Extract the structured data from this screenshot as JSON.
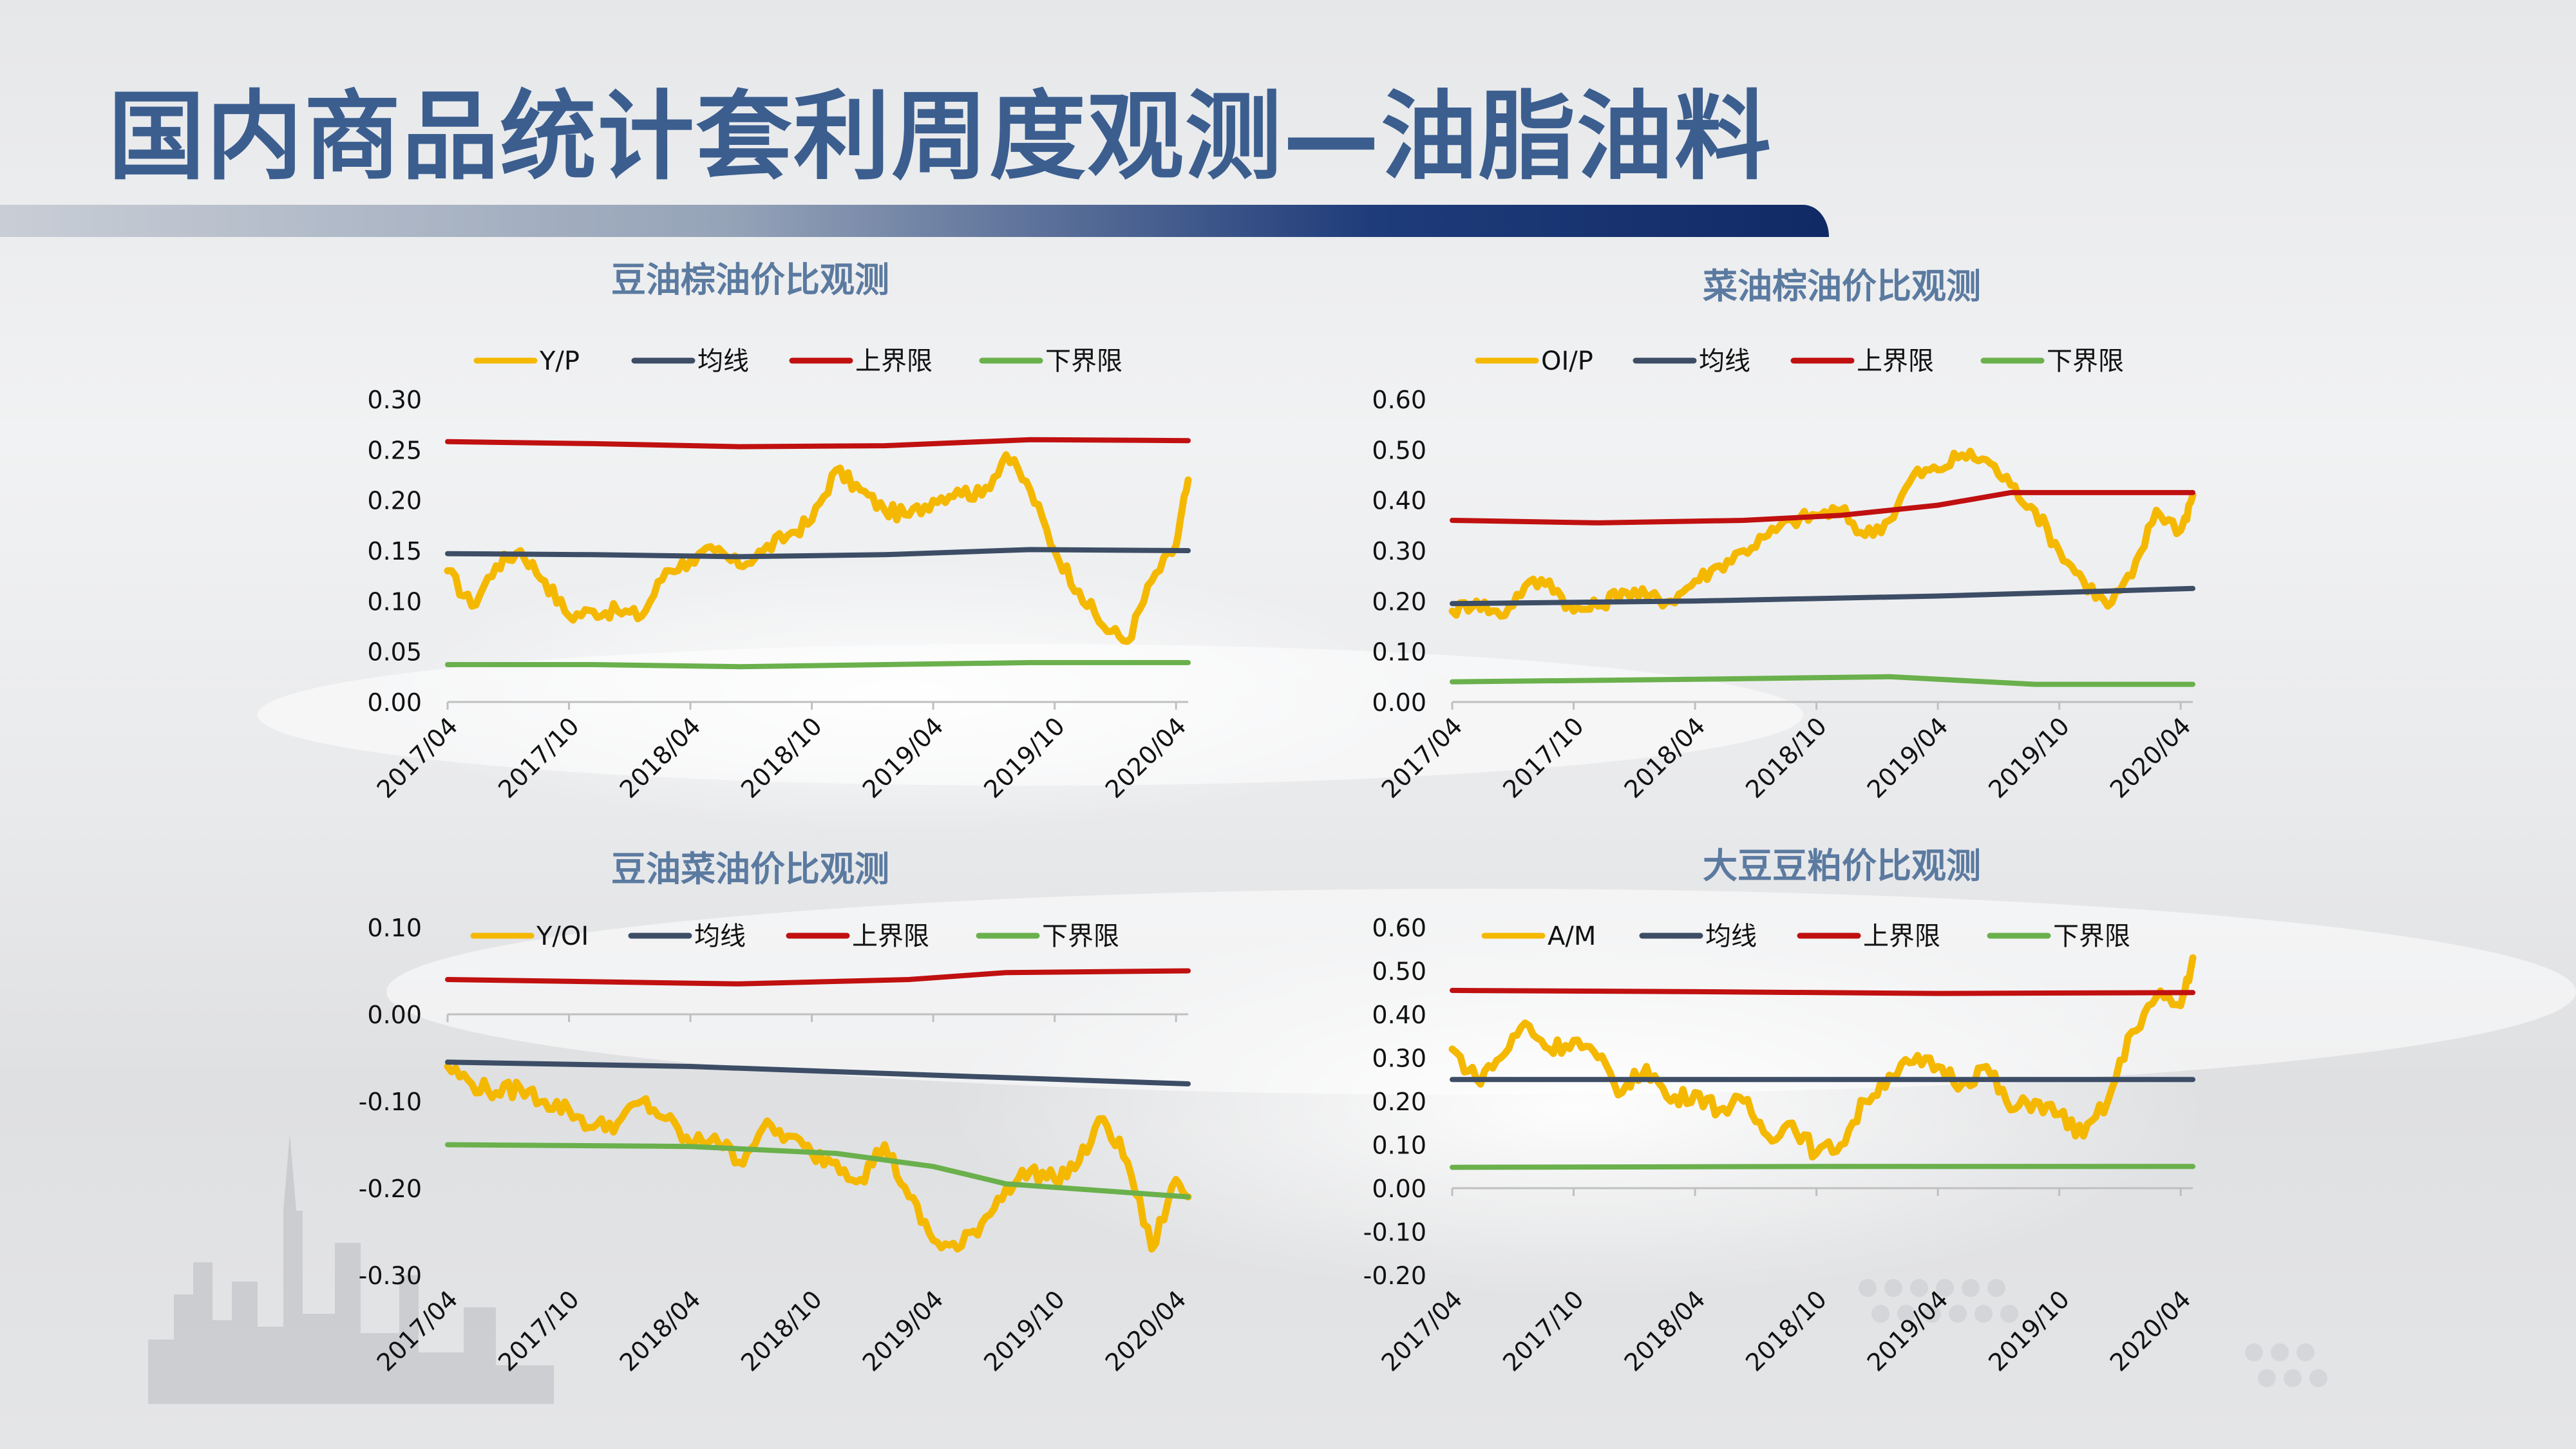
{
  "slide": {
    "title": "国内商品统计套利周度观测—油脂油料"
  },
  "colors": {
    "ratio": "#f5b800",
    "mean": "#3d4d66",
    "upper": "#c01010",
    "lower": "#6ab04c",
    "title": "#3b5e8f",
    "chart_title": "#5b7aa0"
  },
  "chart_data": [
    {
      "type": "line",
      "title": "豆油棕油价比观测",
      "x_tick_labels": [
        "2017/04",
        "2017/10",
        "2018/04",
        "2018/10",
        "2019/04",
        "2019/10",
        "2020/04"
      ],
      "ylim": [
        0,
        0.3
      ],
      "y_ticks": [
        0.0,
        0.05,
        0.1,
        0.15,
        0.2,
        0.25,
        0.3
      ],
      "y_tick_labels": [
        "0.00",
        "0.05",
        "0.10",
        "0.15",
        "0.20",
        "0.25",
        "0.30"
      ],
      "legend_position": "top",
      "series": [
        {
          "name": "Y/P",
          "role": "ratio",
          "points": [
            [
              0,
              0.13
            ],
            [
              1,
              0.095
            ],
            [
              2,
              0.135
            ],
            [
              3,
              0.15
            ],
            [
              4,
              0.12
            ],
            [
              5,
              0.085
            ],
            [
              6,
              0.09
            ],
            [
              7,
              0.09
            ],
            [
              8,
              0.085
            ],
            [
              9,
              0.13
            ],
            [
              10,
              0.14
            ],
            [
              11,
              0.15
            ],
            [
              12,
              0.135
            ],
            [
              13,
              0.15
            ],
            [
              14,
              0.165
            ],
            [
              15,
              0.18
            ],
            [
              16,
              0.23
            ],
            [
              17,
              0.21
            ],
            [
              18,
              0.19
            ],
            [
              19,
              0.185
            ],
            [
              20,
              0.2
            ],
            [
              21,
              0.21
            ],
            [
              22,
              0.205
            ],
            [
              23,
              0.245
            ],
            [
              24,
              0.21
            ],
            [
              25,
              0.15
            ],
            [
              26,
              0.11
            ],
            [
              27,
              0.075
            ],
            [
              28,
              0.06
            ],
            [
              29,
              0.12
            ],
            [
              30,
              0.155
            ],
            [
              30.5,
              0.22
            ]
          ]
        },
        {
          "name": "均线",
          "role": "mean",
          "points": [
            [
              0,
              0.147
            ],
            [
              6,
              0.146
            ],
            [
              12,
              0.144
            ],
            [
              18,
              0.146
            ],
            [
              24,
              0.151
            ],
            [
              30.5,
              0.15
            ]
          ]
        },
        {
          "name": "上界限",
          "role": "upper",
          "points": [
            [
              0,
              0.258
            ],
            [
              6,
              0.256
            ],
            [
              12,
              0.253
            ],
            [
              18,
              0.254
            ],
            [
              24,
              0.26
            ],
            [
              30.5,
              0.259
            ]
          ]
        },
        {
          "name": "下界限",
          "role": "lower",
          "points": [
            [
              0,
              0.037
            ],
            [
              6,
              0.037
            ],
            [
              12,
              0.035
            ],
            [
              18,
              0.037
            ],
            [
              24,
              0.039
            ],
            [
              30.5,
              0.039
            ]
          ]
        }
      ]
    },
    {
      "type": "line",
      "title": "菜油棕油价比观测",
      "x_tick_labels": [
        "2017/04",
        "2017/10",
        "2018/04",
        "2018/10",
        "2019/04",
        "2019/10",
        "2020/04"
      ],
      "ylim": [
        0,
        0.6
      ],
      "y_ticks": [
        0.0,
        0.1,
        0.2,
        0.3,
        0.4,
        0.5,
        0.6
      ],
      "y_tick_labels": [
        "0.00",
        "0.10",
        "0.20",
        "0.30",
        "0.40",
        "0.50",
        "0.60"
      ],
      "legend_position": "top",
      "series": [
        {
          "name": "OI/P",
          "role": "ratio",
          "points": [
            [
              0,
              0.18
            ],
            [
              1,
              0.2
            ],
            [
              2,
              0.17
            ],
            [
              3,
              0.23
            ],
            [
              4,
              0.24
            ],
            [
              5,
              0.18
            ],
            [
              6,
              0.19
            ],
            [
              7,
              0.22
            ],
            [
              8,
              0.21
            ],
            [
              9,
              0.2
            ],
            [
              10,
              0.24
            ],
            [
              11,
              0.27
            ],
            [
              12,
              0.3
            ],
            [
              13,
              0.33
            ],
            [
              14,
              0.36
            ],
            [
              15,
              0.37
            ],
            [
              16,
              0.38
            ],
            [
              17,
              0.33
            ],
            [
              18,
              0.36
            ],
            [
              19,
              0.45
            ],
            [
              20,
              0.46
            ],
            [
              21,
              0.49
            ],
            [
              22,
              0.48
            ],
            [
              23,
              0.43
            ],
            [
              24,
              0.38
            ],
            [
              25,
              0.3
            ],
            [
              26,
              0.24
            ],
            [
              27,
              0.19
            ],
            [
              28,
              0.25
            ],
            [
              29,
              0.38
            ],
            [
              30,
              0.34
            ],
            [
              30.5,
              0.41
            ]
          ]
        },
        {
          "name": "均线",
          "role": "mean",
          "points": [
            [
              0,
              0.195
            ],
            [
              10,
              0.2
            ],
            [
              20,
              0.21
            ],
            [
              30.5,
              0.225
            ]
          ]
        },
        {
          "name": "上界限",
          "role": "upper",
          "points": [
            [
              0,
              0.36
            ],
            [
              6,
              0.355
            ],
            [
              12,
              0.36
            ],
            [
              16,
              0.37
            ],
            [
              20,
              0.39
            ],
            [
              23,
              0.415
            ],
            [
              30.5,
              0.415
            ]
          ]
        },
        {
          "name": "下界限",
          "role": "lower",
          "points": [
            [
              0,
              0.04
            ],
            [
              10,
              0.045
            ],
            [
              18,
              0.05
            ],
            [
              24,
              0.035
            ],
            [
              30.5,
              0.035
            ]
          ]
        }
      ]
    },
    {
      "type": "line",
      "title": "豆油菜油价比观测",
      "x_tick_labels": [
        "2017/04",
        "2017/10",
        "2018/04",
        "2018/10",
        "2019/04",
        "2019/10",
        "2020/04"
      ],
      "ylim": [
        -0.3,
        0.1
      ],
      "y_ticks": [
        -0.3,
        -0.2,
        -0.1,
        0.0,
        0.1
      ],
      "y_tick_labels": [
        "-0.30",
        "-0.20",
        "-0.10",
        "0.00",
        "0.10"
      ],
      "legend_position": "top",
      "series": [
        {
          "name": "Y/OI",
          "role": "ratio",
          "points": [
            [
              0,
              -0.06
            ],
            [
              1,
              -0.08
            ],
            [
              2,
              -0.09
            ],
            [
              3,
              -0.085
            ],
            [
              4,
              -0.1
            ],
            [
              5,
              -0.11
            ],
            [
              6,
              -0.13
            ],
            [
              7,
              -0.125
            ],
            [
              8,
              -0.1
            ],
            [
              9,
              -0.12
            ],
            [
              10,
              -0.15
            ],
            [
              11,
              -0.14
            ],
            [
              12,
              -0.17
            ],
            [
              13,
              -0.13
            ],
            [
              14,
              -0.14
            ],
            [
              15,
              -0.16
            ],
            [
              16,
              -0.17
            ],
            [
              17,
              -0.19
            ],
            [
              18,
              -0.15
            ],
            [
              19,
              -0.21
            ],
            [
              20,
              -0.26
            ],
            [
              21,
              -0.27
            ],
            [
              22,
              -0.24
            ],
            [
              23,
              -0.2
            ],
            [
              24,
              -0.18
            ],
            [
              25,
              -0.19
            ],
            [
              26,
              -0.17
            ],
            [
              27,
              -0.12
            ],
            [
              28,
              -0.17
            ],
            [
              29,
              -0.27
            ],
            [
              30,
              -0.19
            ],
            [
              30.5,
              -0.21
            ]
          ]
        },
        {
          "name": "均线",
          "role": "mean",
          "points": [
            [
              0,
              -0.055
            ],
            [
              10,
              -0.06
            ],
            [
              20,
              -0.07
            ],
            [
              30.5,
              -0.08
            ]
          ]
        },
        {
          "name": "上界限",
          "role": "upper",
          "points": [
            [
              0,
              0.04
            ],
            [
              12,
              0.035
            ],
            [
              19,
              0.04
            ],
            [
              23,
              0.048
            ],
            [
              30.5,
              0.05
            ]
          ]
        },
        {
          "name": "下界限",
          "role": "lower",
          "points": [
            [
              0,
              -0.15
            ],
            [
              10,
              -0.152
            ],
            [
              16,
              -0.16
            ],
            [
              20,
              -0.175
            ],
            [
              23,
              -0.195
            ],
            [
              30.5,
              -0.21
            ]
          ]
        }
      ]
    },
    {
      "type": "line",
      "title": "大豆豆粕价比观测",
      "x_tick_labels": [
        "2017/04",
        "2017/10",
        "2018/04",
        "2018/10",
        "2019/04",
        "2019/10",
        "2020/04"
      ],
      "ylim": [
        -0.2,
        0.6
      ],
      "y_ticks": [
        -0.2,
        -0.1,
        0.0,
        0.1,
        0.2,
        0.3,
        0.4,
        0.5,
        0.6
      ],
      "y_tick_labels": [
        "-0.20",
        "-0.10",
        "0.00",
        "0.10",
        "0.20",
        "0.30",
        "0.40",
        "0.50",
        "0.60"
      ],
      "legend_position": "top",
      "series": [
        {
          "name": "A/M",
          "role": "ratio",
          "points": [
            [
              0,
              0.32
            ],
            [
              1,
              0.25
            ],
            [
              2,
              0.3
            ],
            [
              3,
              0.38
            ],
            [
              4,
              0.32
            ],
            [
              5,
              0.34
            ],
            [
              6,
              0.3
            ],
            [
              7,
              0.22
            ],
            [
              8,
              0.28
            ],
            [
              9,
              0.2
            ],
            [
              10,
              0.22
            ],
            [
              11,
              0.18
            ],
            [
              12,
              0.2
            ],
            [
              13,
              0.12
            ],
            [
              14,
              0.15
            ],
            [
              15,
              0.08
            ],
            [
              16,
              0.1
            ],
            [
              17,
              0.2
            ],
            [
              18,
              0.26
            ],
            [
              19,
              0.29
            ],
            [
              20,
              0.28
            ],
            [
              21,
              0.24
            ],
            [
              22,
              0.28
            ],
            [
              23,
              0.18
            ],
            [
              24,
              0.2
            ],
            [
              25,
              0.17
            ],
            [
              26,
              0.12
            ],
            [
              27,
              0.2
            ],
            [
              28,
              0.36
            ],
            [
              29,
              0.44
            ],
            [
              30,
              0.42
            ],
            [
              30.5,
              0.53
            ]
          ]
        },
        {
          "name": "均线",
          "role": "mean",
          "points": [
            [
              0,
              0.25
            ],
            [
              15,
              0.25
            ],
            [
              30.5,
              0.25
            ]
          ]
        },
        {
          "name": "上界限",
          "role": "upper",
          "points": [
            [
              0,
              0.455
            ],
            [
              10,
              0.452
            ],
            [
              20,
              0.448
            ],
            [
              30.5,
              0.45
            ]
          ]
        },
        {
          "name": "下界限",
          "role": "lower",
          "points": [
            [
              0,
              0.048
            ],
            [
              15,
              0.05
            ],
            [
              30.5,
              0.05
            ]
          ]
        }
      ]
    }
  ]
}
